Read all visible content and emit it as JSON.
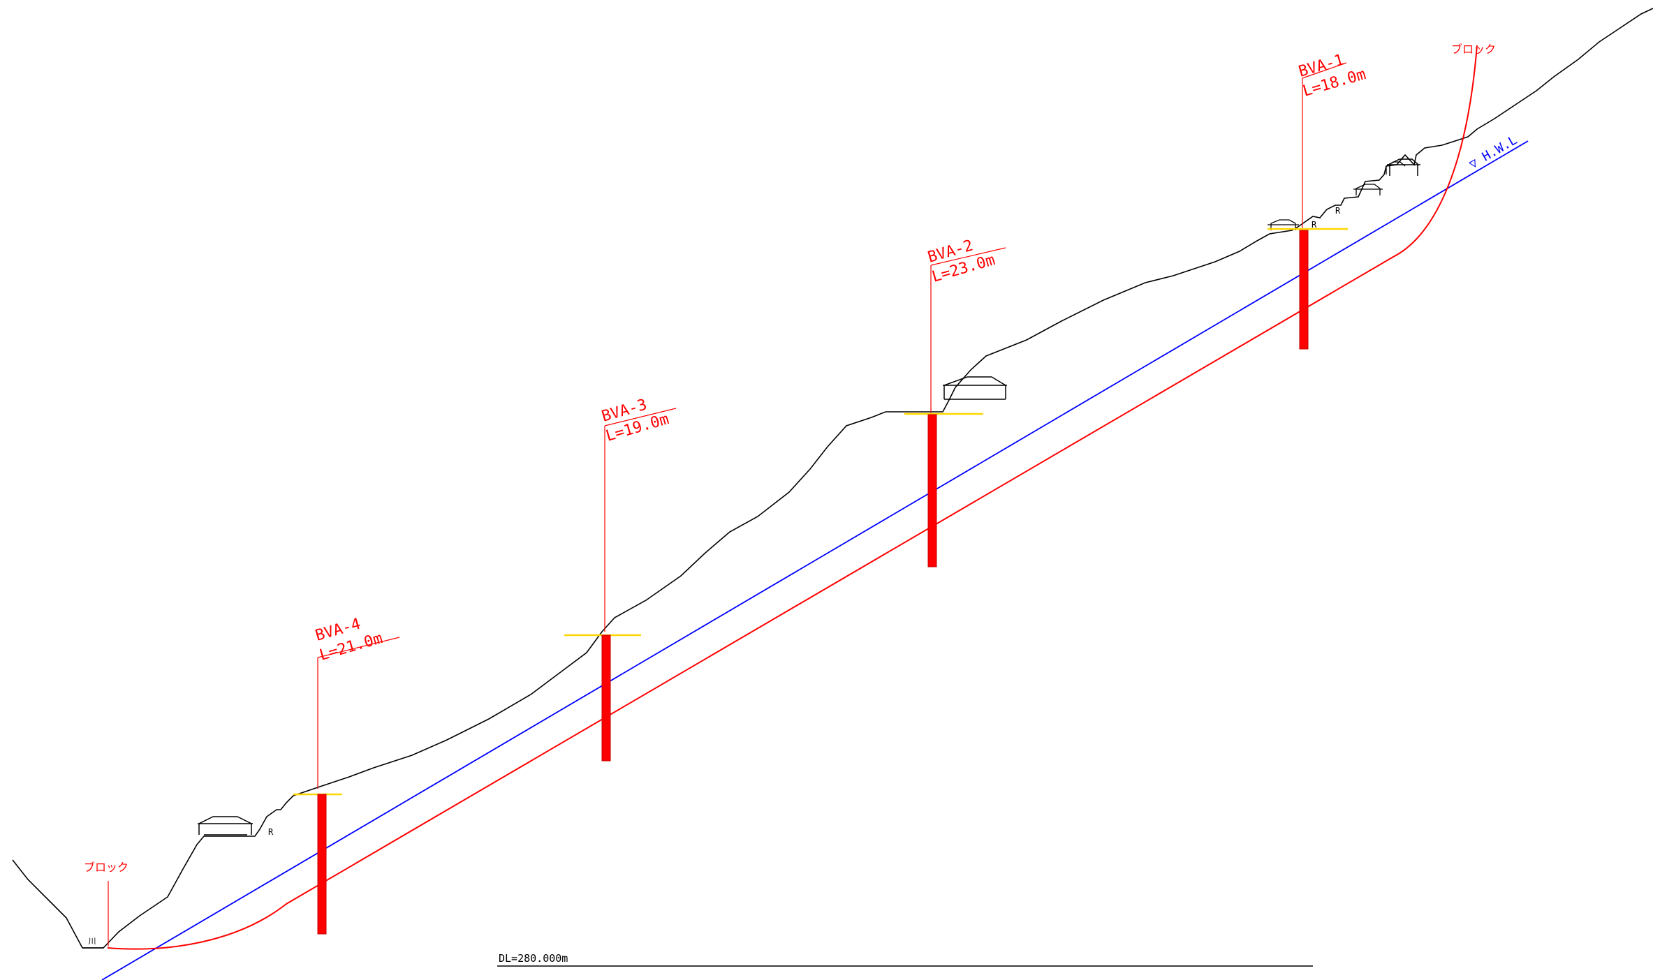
{
  "header_text": "",
  "boreholes": [
    {
      "id": "BVA-1",
      "length_label": "L=18.0m"
    },
    {
      "id": "BVA-2",
      "length_label": "L=23.0m"
    },
    {
      "id": "BVA-3",
      "length_label": "L=19.0m"
    },
    {
      "id": "BVA-4",
      "length_label": "L=21.0m"
    }
  ],
  "block_label": "ブロック",
  "water_level_label": "▽ H.W.L",
  "river_label": "川",
  "road_label": "R",
  "datum_label": "DL=280.000m",
  "colors": {
    "ground": "#000000",
    "slip_surface": "#ff0000",
    "water_level": "#0000ff",
    "borehole": "#ff0000",
    "marker": "#ffd700"
  }
}
